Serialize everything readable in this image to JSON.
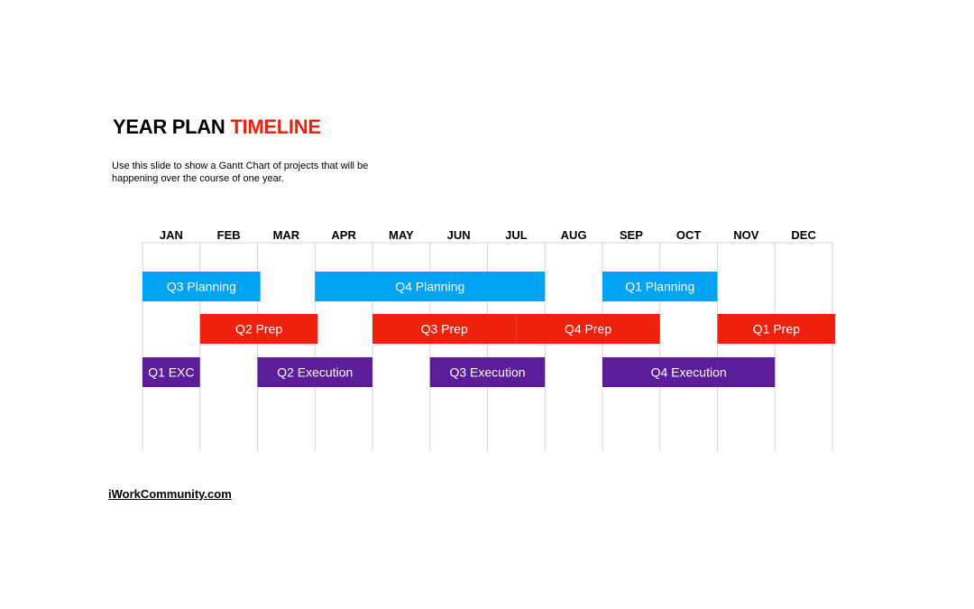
{
  "slide": {
    "title_main": "YEAR PLAN",
    "title_accent": "TIMELINE",
    "title_accent_color": "#e8230e",
    "subtitle": "Use this slide to show a Gantt Chart of projects that will be happening over the course of one year.",
    "footer_link": "iWorkCommunity.com"
  },
  "colors": {
    "planning": "#00a2f2",
    "prep": "#ee220c",
    "execution": "#5b1d99",
    "grid": "#d6d6d6"
  },
  "chart_data": {
    "type": "gantt",
    "categories": [
      "JAN",
      "FEB",
      "MAR",
      "APR",
      "MAY",
      "JUN",
      "JUL",
      "AUG",
      "SEP",
      "OCT",
      "NOV",
      "DEC"
    ],
    "grid": true,
    "rows": [
      {
        "kind": "planning",
        "tasks": [
          {
            "label": "Q3 Planning",
            "start": 0,
            "end": 2.05
          },
          {
            "label": "Q4 Planning",
            "start": 3.0,
            "end": 7.0
          },
          {
            "label": "Q1 Planning",
            "start": 8.0,
            "end": 10.0
          }
        ]
      },
      {
        "kind": "prep",
        "tasks": [
          {
            "label": "Q2 Prep",
            "start": 1.0,
            "end": 3.05
          },
          {
            "label": "Q3 Prep",
            "start": 4.0,
            "end": 6.5
          },
          {
            "label": "Q4 Prep",
            "start": 6.5,
            "end": 9.0
          },
          {
            "label": "Q1 Prep",
            "start": 10.0,
            "end": 12.05
          }
        ]
      },
      {
        "kind": "execution",
        "tasks": [
          {
            "label": "Q1 EXC",
            "start": 0,
            "end": 1.0
          },
          {
            "label": "Q2 Execution",
            "start": 2.0,
            "end": 4.0
          },
          {
            "label": "Q3 Execution",
            "start": 5.0,
            "end": 7.0
          },
          {
            "label": "Q4 Execution",
            "start": 8.0,
            "end": 11.0
          }
        ]
      }
    ]
  }
}
